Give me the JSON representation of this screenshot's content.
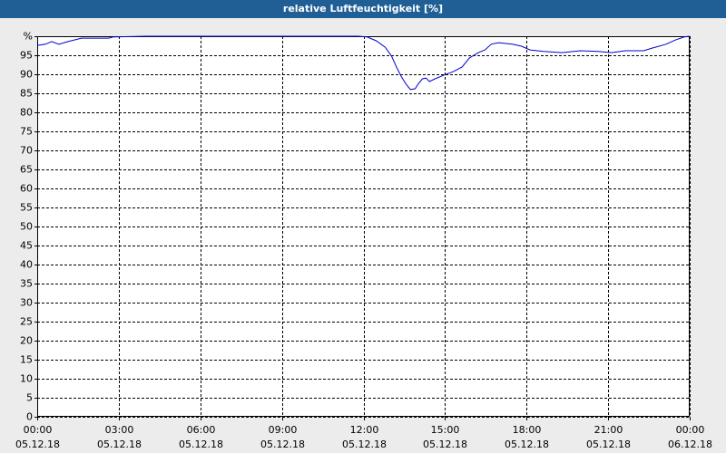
{
  "chart_data": {
    "type": "line",
    "title": "relative Luftfeuchtigkeit [%]",
    "xlim": [
      0,
      24
    ],
    "ylim": [
      0,
      100
    ],
    "xticks": [
      {
        "value": 0,
        "label": "00:00"
      },
      {
        "value": 3,
        "label": "03:00"
      },
      {
        "value": 6,
        "label": "06:00"
      },
      {
        "value": 9,
        "label": "09:00"
      },
      {
        "value": 12,
        "label": "12:00"
      },
      {
        "value": 15,
        "label": "15:00"
      },
      {
        "value": 18,
        "label": "18:00"
      },
      {
        "value": 21,
        "label": "21:00"
      },
      {
        "value": 24,
        "label": "00:00"
      }
    ],
    "xtick_dates": [
      "05.12.18",
      "05.12.18",
      "05.12.18",
      "05.12.18",
      "05.12.18",
      "05.12.18",
      "05.12.18",
      "05.12.18",
      "06.12.18"
    ],
    "yticks": [
      0,
      5,
      10,
      15,
      20,
      25,
      30,
      35,
      40,
      45,
      50,
      55,
      60,
      65,
      70,
      75,
      80,
      85,
      90,
      95,
      {
        "value": 100,
        "label": "%"
      }
    ],
    "grid": true,
    "series": [
      {
        "color": "#0000cc",
        "x": [
          0,
          0.3,
          0.53,
          0.8,
          1.13,
          1.63,
          2.63,
          2.8,
          3.97,
          11.8,
          12.13,
          12.47,
          12.8,
          13.03,
          13.23,
          13.4,
          13.57,
          13.73,
          13.9,
          14.03,
          14.17,
          14.3,
          14.43,
          14.63,
          14.97,
          15.3,
          15.63,
          15.9,
          16.23,
          16.47,
          16.7,
          16.97,
          17.47,
          17.8,
          18.13,
          18.63,
          19.3,
          19.97,
          20.63,
          21.13,
          21.63,
          22.3,
          22.63,
          23.13,
          23.47,
          23.8,
          24
        ],
        "values": [
          97.6,
          97.9,
          98.6,
          97.9,
          98.6,
          99.5,
          99.5,
          99.8,
          100,
          100,
          99.8,
          98.8,
          97.1,
          94.8,
          91.7,
          89.3,
          87.4,
          86.0,
          86.2,
          87.6,
          88.8,
          89.0,
          88.1,
          88.8,
          89.8,
          90.7,
          91.9,
          94.3,
          95.7,
          96.4,
          97.9,
          98.3,
          97.9,
          97.4,
          96.4,
          96.0,
          95.7,
          96.2,
          96.0,
          95.7,
          96.2,
          96.2,
          96.9,
          97.9,
          99.0,
          99.8,
          100
        ]
      }
    ]
  }
}
